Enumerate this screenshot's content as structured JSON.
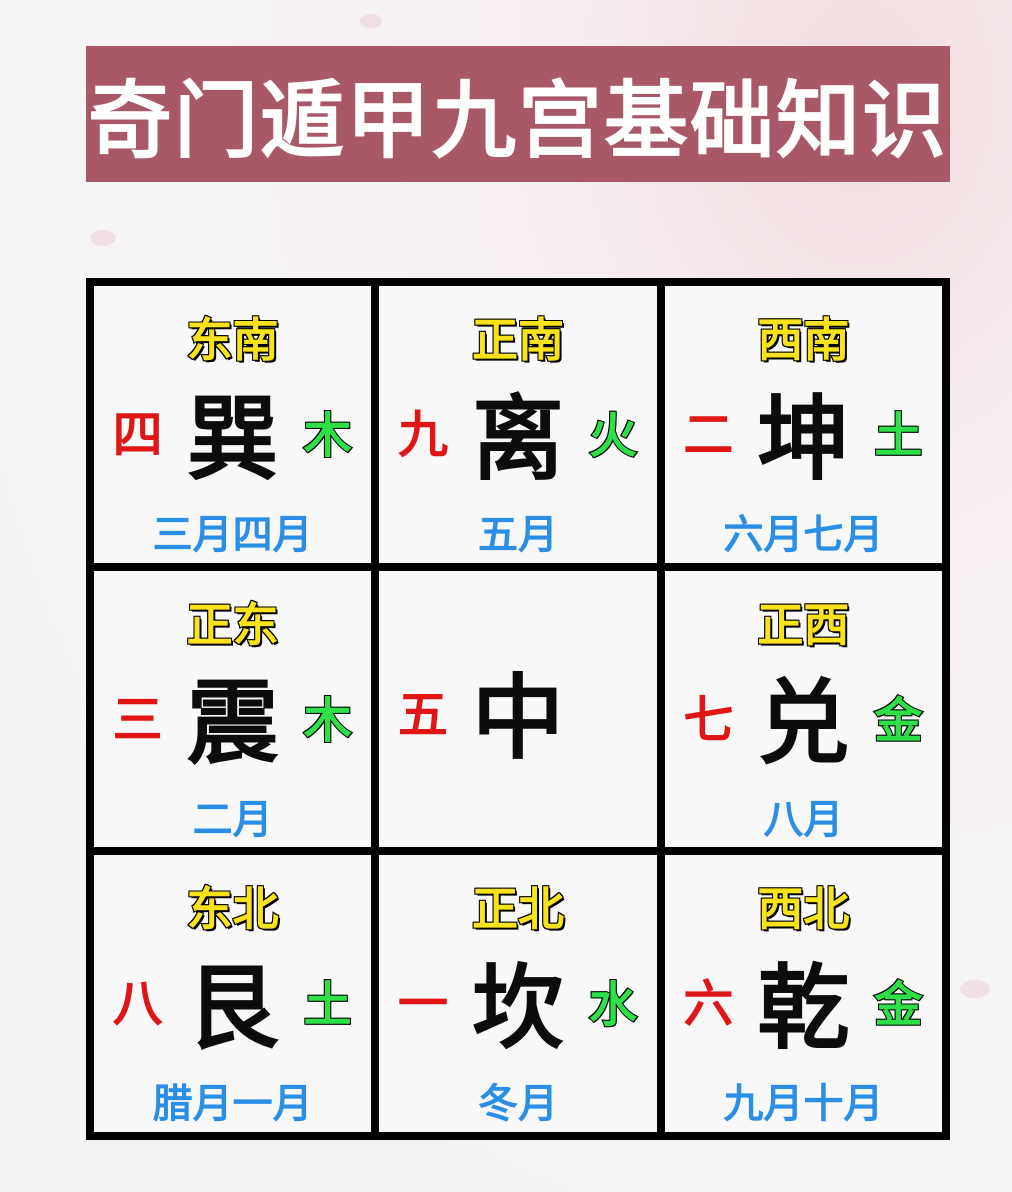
{
  "title": "奇门遁甲九宫基础知识",
  "colors": {
    "title_bg": "#a95868",
    "direction": "#f7e21c",
    "number": "#e01616",
    "element": "#2ee048",
    "month": "#2a8ee6"
  },
  "palaces": [
    {
      "direction": "东南",
      "number": "四",
      "trigram": "巽",
      "element": "木",
      "months": "三月四月"
    },
    {
      "direction": "正南",
      "number": "九",
      "trigram": "离",
      "element": "火",
      "months": "五月"
    },
    {
      "direction": "西南",
      "number": "二",
      "trigram": "坤",
      "element": "土",
      "months": "六月七月"
    },
    {
      "direction": "正东",
      "number": "三",
      "trigram": "震",
      "element": "木",
      "months": "二月"
    },
    {
      "direction": "",
      "number": "五",
      "trigram": "中",
      "element": "",
      "months": ""
    },
    {
      "direction": "正西",
      "number": "七",
      "trigram": "兑",
      "element": "金",
      "months": "八月"
    },
    {
      "direction": "东北",
      "number": "八",
      "trigram": "艮",
      "element": "土",
      "months": "腊月一月"
    },
    {
      "direction": "正北",
      "number": "一",
      "trigram": "坎",
      "element": "水",
      "months": "冬月"
    },
    {
      "direction": "西北",
      "number": "六",
      "trigram": "乾",
      "element": "金",
      "months": "九月十月"
    }
  ]
}
